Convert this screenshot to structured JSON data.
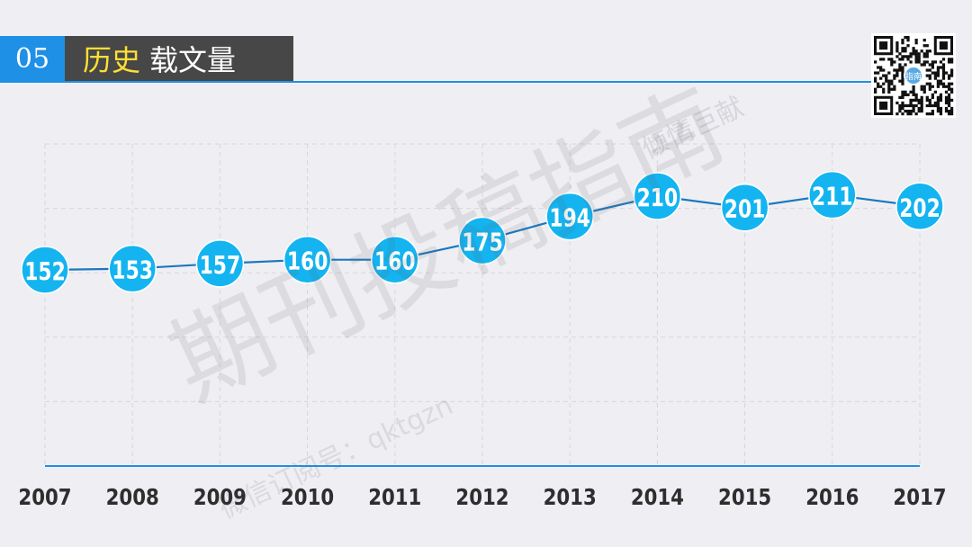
{
  "header": {
    "number": "05",
    "title_highlight": "历史",
    "title_rest": "载文量"
  },
  "watermarks": {
    "big": "期刊投稿指南",
    "top_right": "倾情巨献",
    "bottom": "微信订阅号：qktgzn",
    "qr_center": "指南"
  },
  "colors": {
    "accent": "#1e90e6",
    "bubble": "#14b4f0",
    "line": "#1c78c0",
    "title_bg": "#474747",
    "highlight": "#ffe033"
  },
  "chart_data": {
    "type": "line",
    "categories": [
      "2007",
      "2008",
      "2009",
      "2010",
      "2011",
      "2012",
      "2013",
      "2014",
      "2015",
      "2016",
      "2017"
    ],
    "values": [
      152,
      153,
      157,
      160,
      160,
      175,
      194,
      210,
      201,
      211,
      202
    ],
    "title": "",
    "xlabel": "",
    "ylabel": "",
    "ylim": [
      0,
      250
    ],
    "grid": true,
    "data_labels": true
  }
}
